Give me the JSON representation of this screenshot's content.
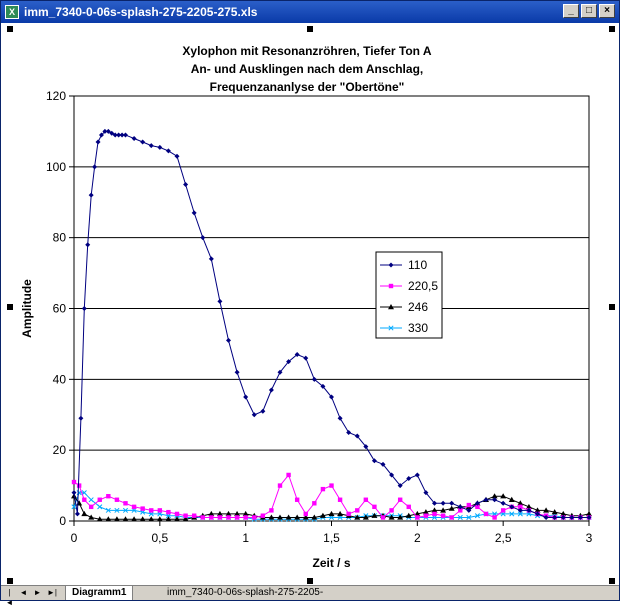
{
  "window": {
    "title": "imm_7340-0-06s-splash-275-2205-275.xls",
    "app_icon": "X",
    "minimize": "_",
    "maximize": "□",
    "close": "×"
  },
  "sheet_tabs": {
    "active": "Diagramm1",
    "inactive": "imm_7340-0-06s-splash-275-2205-"
  },
  "chart_data": {
    "type": "line",
    "title": [
      "Xylophon mit Resonanzröhren, Tiefer Ton A",
      "An- und Ausklingen nach dem Anschlag,",
      "Frequenzananlyse der \"Obertöne\""
    ],
    "xlabel": "Zeit / s",
    "ylabel": "Amplitude",
    "xlim": [
      0,
      3
    ],
    "ylim": [
      0,
      120
    ],
    "xticks": [
      "0",
      "0,5",
      "1",
      "1,5",
      "2",
      "2,5",
      "3"
    ],
    "yticks": [
      "0",
      "20",
      "40",
      "60",
      "80",
      "100",
      "120"
    ],
    "grid": "horizontal",
    "legend_position": "right-middle",
    "series": [
      {
        "name": "110",
        "color": "#000080",
        "marker": "diamond",
        "x": [
          0.0,
          0.02,
          0.04,
          0.06,
          0.08,
          0.1,
          0.12,
          0.14,
          0.16,
          0.18,
          0.2,
          0.22,
          0.24,
          0.26,
          0.28,
          0.3,
          0.35,
          0.4,
          0.45,
          0.5,
          0.55,
          0.6,
          0.65,
          0.7,
          0.75,
          0.8,
          0.85,
          0.9,
          0.95,
          1.0,
          1.05,
          1.1,
          1.15,
          1.2,
          1.25,
          1.3,
          1.35,
          1.4,
          1.45,
          1.5,
          1.55,
          1.6,
          1.65,
          1.7,
          1.75,
          1.8,
          1.85,
          1.9,
          1.95,
          2.0,
          2.05,
          2.1,
          2.15,
          2.2,
          2.25,
          2.3,
          2.35,
          2.4,
          2.45,
          2.5,
          2.55,
          2.6,
          2.65,
          2.7,
          2.75,
          2.8,
          2.85,
          2.9,
          2.95,
          3.0
        ],
        "values": [
          8,
          2,
          29,
          60,
          78,
          92,
          100,
          107,
          109,
          110,
          110,
          109.5,
          109,
          109,
          109,
          109,
          108,
          107,
          106,
          105.5,
          104.5,
          103,
          95,
          87,
          80,
          74,
          62,
          51,
          42,
          35,
          30,
          31,
          37,
          42,
          45,
          47,
          46,
          40,
          38,
          35,
          29,
          25,
          24,
          21,
          17,
          16,
          13,
          10,
          12,
          13,
          8,
          5,
          5,
          5,
          4,
          3,
          5,
          6,
          6,
          5,
          4,
          3,
          3,
          2,
          1,
          1,
          1,
          1,
          1,
          1
        ]
      },
      {
        "name": "220,5",
        "color": "#ff00ff",
        "marker": "square",
        "x": [
          0.0,
          0.03,
          0.06,
          0.1,
          0.15,
          0.2,
          0.25,
          0.3,
          0.35,
          0.4,
          0.45,
          0.5,
          0.55,
          0.6,
          0.65,
          0.7,
          0.75,
          0.8,
          0.85,
          0.9,
          0.95,
          1.0,
          1.05,
          1.1,
          1.15,
          1.2,
          1.25,
          1.3,
          1.35,
          1.4,
          1.45,
          1.5,
          1.55,
          1.6,
          1.65,
          1.7,
          1.75,
          1.8,
          1.85,
          1.9,
          1.95,
          2.0,
          2.05,
          2.1,
          2.15,
          2.2,
          2.25,
          2.3,
          2.35,
          2.4,
          2.45,
          2.5,
          2.55,
          2.6,
          2.65,
          2.7,
          2.75,
          2.8,
          2.85,
          2.9,
          2.95,
          3.0
        ],
        "values": [
          11,
          10,
          6,
          4,
          6,
          7,
          6,
          5,
          4,
          3.5,
          3,
          3,
          2.5,
          2,
          1.5,
          1.5,
          1,
          1,
          1,
          1,
          1,
          1,
          1,
          1.5,
          3,
          10,
          13,
          6,
          2,
          5,
          9,
          10,
          6,
          2,
          3,
          6,
          4,
          1,
          3,
          6,
          4,
          1,
          1.5,
          2,
          1.5,
          1,
          3,
          4.5,
          4,
          2,
          1,
          3,
          4,
          4,
          3,
          2,
          1.5,
          1,
          1,
          1,
          1,
          1
        ]
      },
      {
        "name": "246",
        "color": "#000000",
        "marker": "triangle",
        "x": [
          0.0,
          0.03,
          0.06,
          0.1,
          0.15,
          0.2,
          0.25,
          0.3,
          0.35,
          0.4,
          0.45,
          0.5,
          0.55,
          0.6,
          0.65,
          0.7,
          0.75,
          0.8,
          0.85,
          0.9,
          0.95,
          1.0,
          1.05,
          1.1,
          1.15,
          1.2,
          1.25,
          1.3,
          1.35,
          1.4,
          1.45,
          1.5,
          1.55,
          1.6,
          1.65,
          1.7,
          1.75,
          1.8,
          1.85,
          1.9,
          1.95,
          2.0,
          2.05,
          2.1,
          2.15,
          2.2,
          2.25,
          2.3,
          2.35,
          2.4,
          2.45,
          2.5,
          2.55,
          2.6,
          2.65,
          2.7,
          2.75,
          2.8,
          2.85,
          2.9,
          2.95,
          3.0
        ],
        "values": [
          7,
          5,
          2,
          1,
          0.5,
          0.5,
          0.5,
          0.5,
          0.5,
          0.5,
          0.5,
          0.5,
          0.5,
          0.5,
          0.5,
          1,
          1.5,
          2,
          2,
          2,
          2,
          2,
          1.5,
          1,
          1,
          1,
          1,
          1,
          1,
          1,
          1.5,
          2,
          2,
          1.5,
          1,
          1,
          1.5,
          1.5,
          1,
          1,
          1.5,
          2,
          2.5,
          3,
          3,
          3.5,
          4,
          4,
          5,
          6,
          7,
          7,
          6,
          5,
          4,
          3,
          3,
          2.5,
          2,
          1.5,
          1.5,
          2
        ]
      },
      {
        "name": "330",
        "color": "#00aaff",
        "marker": "x",
        "x": [
          0.0,
          0.03,
          0.06,
          0.1,
          0.15,
          0.2,
          0.25,
          0.3,
          0.35,
          0.4,
          0.45,
          0.5,
          0.55,
          0.6,
          0.65,
          0.7,
          0.75,
          0.8,
          0.85,
          0.9,
          0.95,
          1.0,
          1.05,
          1.1,
          1.15,
          1.2,
          1.25,
          1.3,
          1.35,
          1.4,
          1.45,
          1.5,
          1.55,
          1.6,
          1.65,
          1.7,
          1.75,
          1.8,
          1.85,
          1.9,
          1.95,
          2.0,
          2.05,
          2.1,
          2.15,
          2.2,
          2.25,
          2.3,
          2.35,
          2.4,
          2.45,
          2.5,
          2.55,
          2.6,
          2.65,
          2.7,
          2.75,
          2.8,
          2.85,
          2.9,
          2.95,
          3.0
        ],
        "values": [
          4,
          8,
          8,
          6,
          4,
          3,
          3,
          3,
          3,
          2.5,
          2,
          2,
          1.5,
          1.5,
          1,
          1,
          1,
          1,
          1,
          1,
          1,
          1,
          0.5,
          0.5,
          0.5,
          0.5,
          0.5,
          0.5,
          0.5,
          0.5,
          1,
          1,
          1,
          1,
          1,
          1.5,
          1.5,
          1.5,
          1.5,
          1.5,
          1,
          1,
          1,
          1,
          1,
          1,
          1,
          1,
          1.5,
          2,
          2,
          2,
          2,
          2,
          2,
          1.5,
          1.5,
          1.5,
          1,
          1,
          1,
          1
        ]
      }
    ]
  }
}
